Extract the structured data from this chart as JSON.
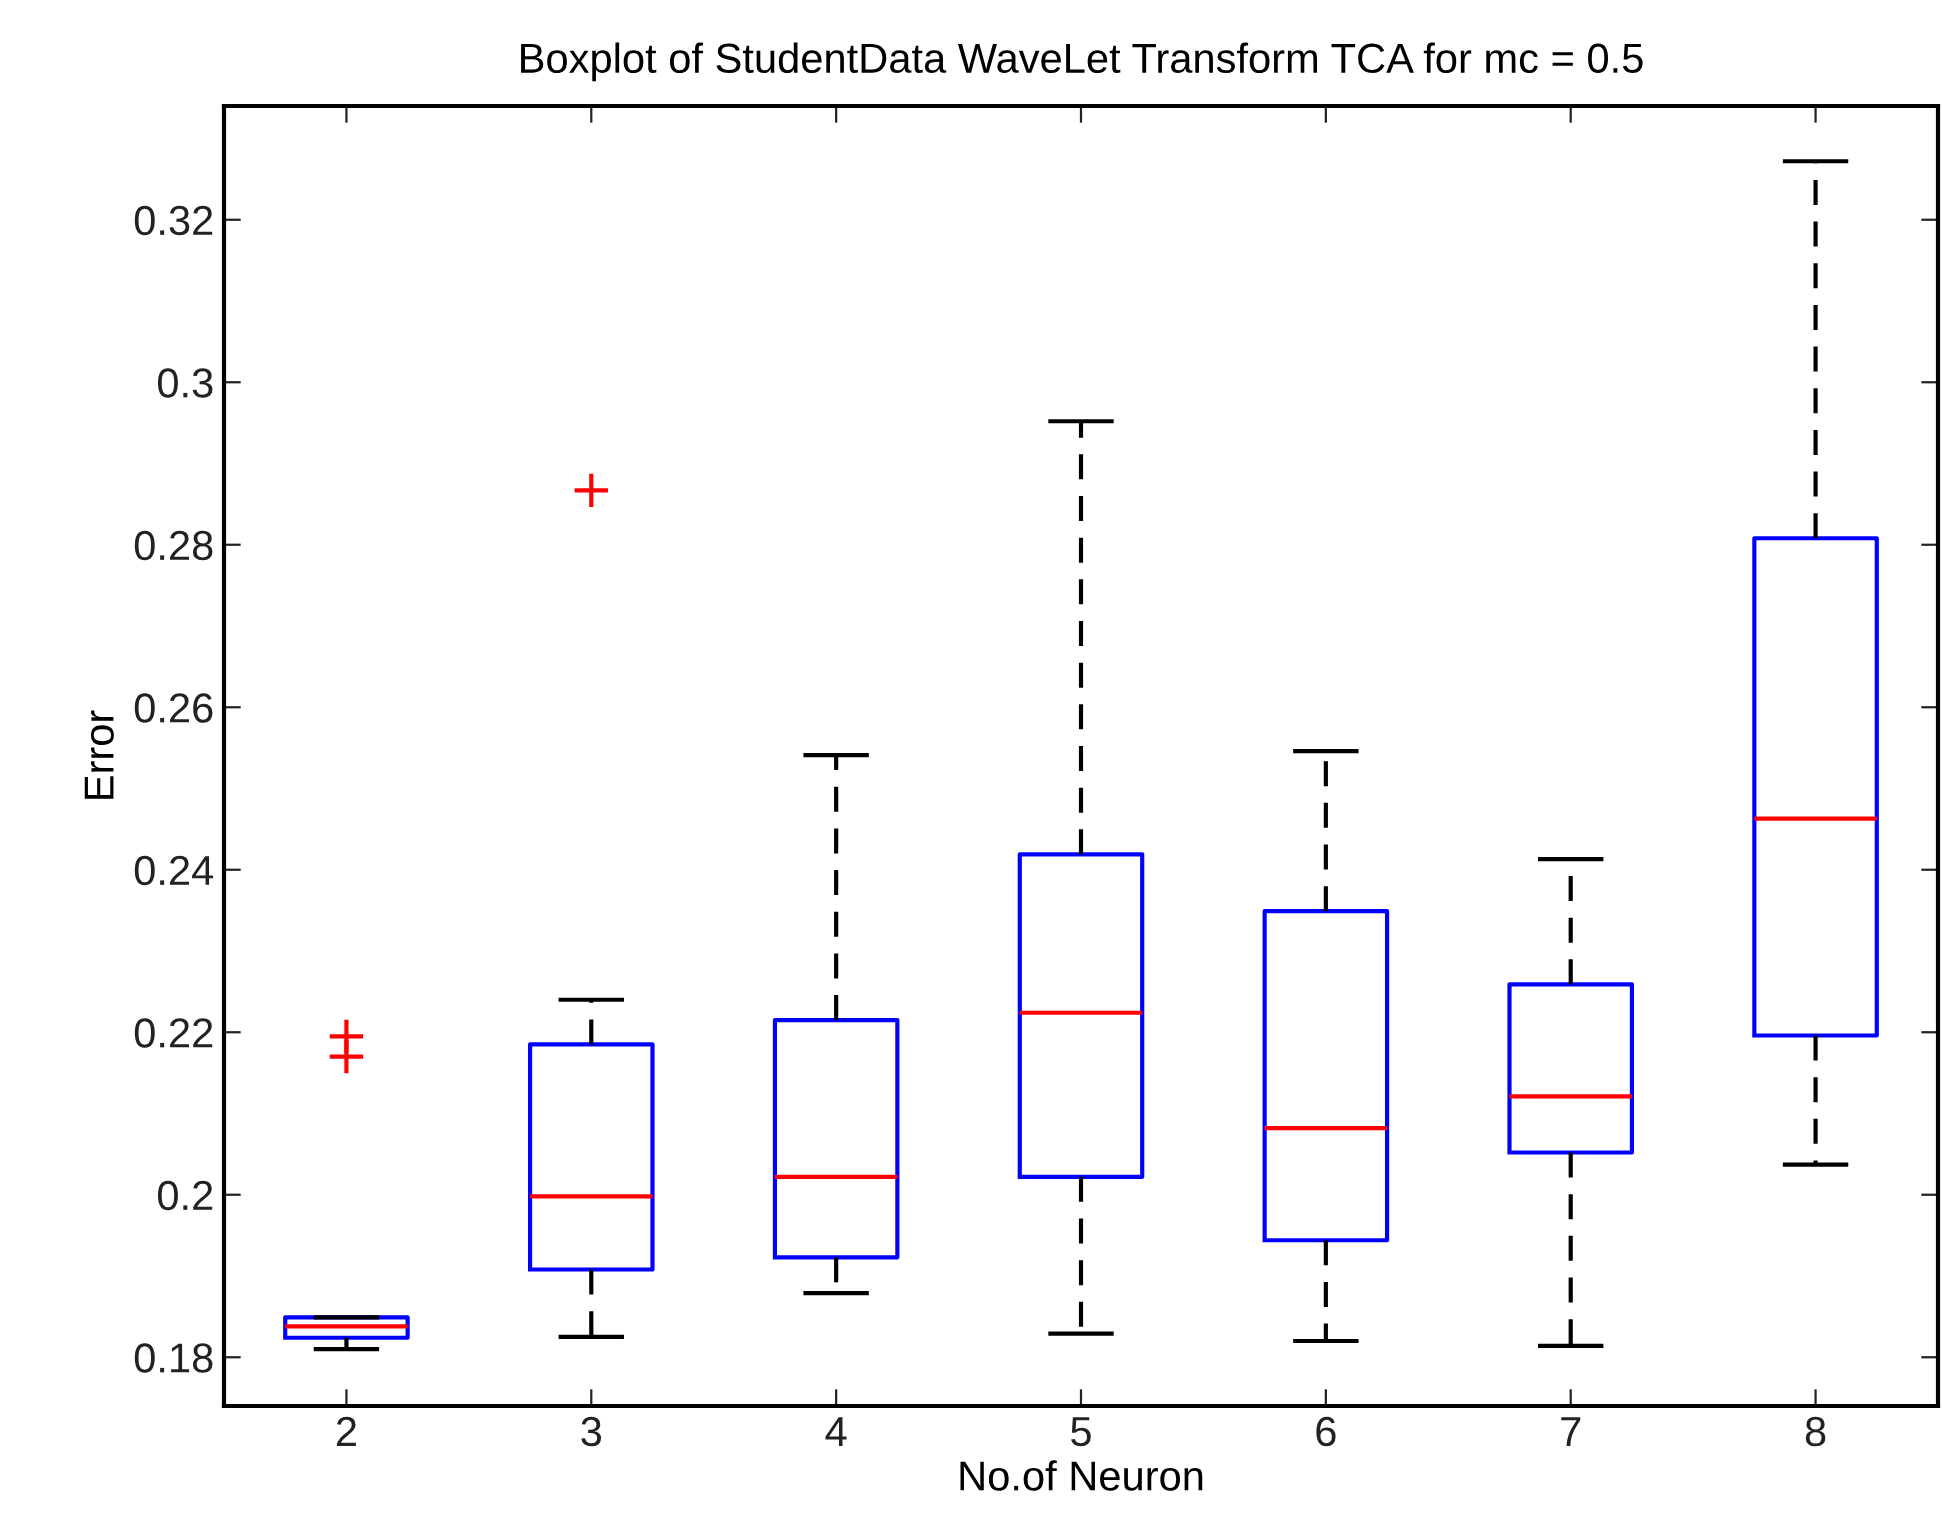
{
  "chart_data": {
    "type": "box",
    "title": "Boxplot of StudentData WaveLet Transform TCA for mc = 0.5",
    "xlabel": "No.of Neuron",
    "ylabel": "Error",
    "categories": [
      "2",
      "3",
      "4",
      "5",
      "6",
      "7",
      "8"
    ],
    "boxes": [
      {
        "low": 0.181,
        "q1": 0.1824,
        "median": 0.1838,
        "q3": 0.1849,
        "high": 0.1849,
        "outliers": [
          0.2195,
          0.217
        ]
      },
      {
        "low": 0.1825,
        "q1": 0.1908,
        "median": 0.1998,
        "q3": 0.2185,
        "high": 0.224,
        "outliers": [
          0.2867
        ]
      },
      {
        "low": 0.1879,
        "q1": 0.1923,
        "median": 0.2022,
        "q3": 0.2215,
        "high": 0.2541
      },
      {
        "low": 0.1829,
        "q1": 0.2022,
        "median": 0.2224,
        "q3": 0.2419,
        "high": 0.2952
      },
      {
        "low": 0.182,
        "q1": 0.1944,
        "median": 0.2082,
        "q3": 0.2349,
        "high": 0.2546
      },
      {
        "low": 0.1814,
        "q1": 0.2052,
        "median": 0.2121,
        "q3": 0.2259,
        "high": 0.2413
      },
      {
        "low": 0.2037,
        "q1": 0.2196,
        "median": 0.2463,
        "q3": 0.2808,
        "high": 0.3272
      }
    ],
    "ylim": [
      0.174,
      0.334
    ],
    "yticks": [
      0.18,
      {
        "value": 0.2,
        "label": "0.2"
      },
      0.22,
      0.24,
      0.26,
      0.28,
      {
        "value": 0.3,
        "label": "0.3"
      },
      0.32
    ],
    "color": "#0000ff",
    "grid": false,
    "legend": false
  }
}
